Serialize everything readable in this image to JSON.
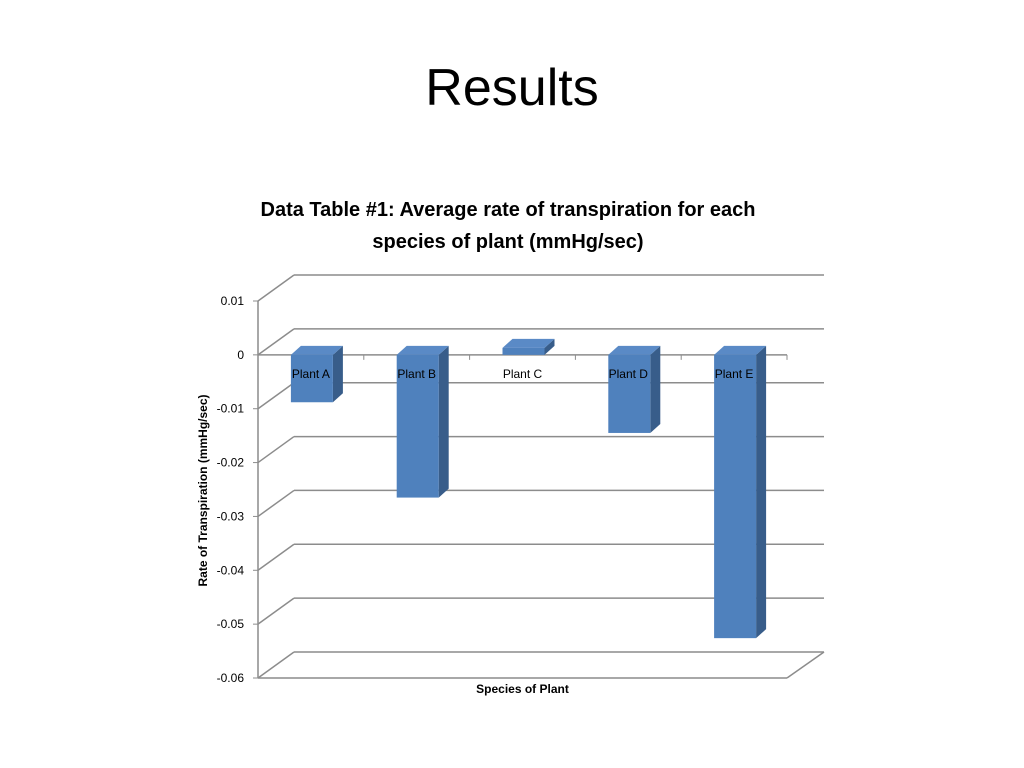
{
  "slide": {
    "title": "Results"
  },
  "chart_data": {
    "type": "bar",
    "title": "Data Table #1: Average rate of transpiration for each species of plant (mmHg/sec)",
    "xlabel": "Species of Plant",
    "ylabel": "Rate of Transpiration (mmHg/sec)",
    "categories": [
      "Plant A",
      "Plant B",
      "Plant C",
      "Plant D",
      "Plant E"
    ],
    "values": [
      -0.0088,
      -0.0265,
      0.0013,
      -0.0145,
      -0.0526
    ],
    "ylim": [
      -0.06,
      0.01
    ],
    "yticks": [
      "0.01",
      "0",
      "-0.01",
      "-0.02",
      "-0.03",
      "-0.04",
      "-0.05",
      "-0.06"
    ],
    "grid": true,
    "legend": "none",
    "bar_color": "#4F81BD",
    "bar_side_color": "#385D8A",
    "bar_top_color": "#5A8AC6",
    "grid_color": "#8C8C8C"
  }
}
